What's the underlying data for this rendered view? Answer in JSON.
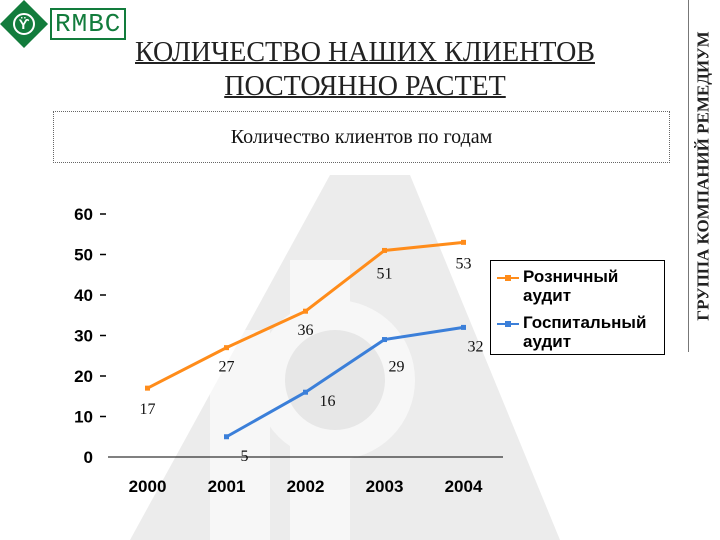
{
  "logo": {
    "text": "RMBC",
    "mark": "ϔ"
  },
  "header": {
    "title_line1": "КОЛИЧЕСТВО НАШИХ КЛИЕНТОВ",
    "title_line2": "ПОСТОЯННО РАСТЕТ",
    "subtitle": "Количество клиентов по годам",
    "side_label": "ГРУППА КОМПАНИЙ РЕМЕДИУМ"
  },
  "colors": {
    "brand": "#127c3c",
    "retail": "#ff8c1a",
    "hospital": "#3b7fd9"
  },
  "chart_data": {
    "type": "line",
    "categories": [
      "2000",
      "2001",
      "2002",
      "2003",
      "2004"
    ],
    "yticks": [
      "0",
      "10",
      "20",
      "30",
      "40",
      "50",
      "60"
    ],
    "ylim": [
      0,
      60
    ],
    "series": [
      {
        "name": "Розничный аудит",
        "values": [
          17,
          27,
          36,
          51,
          53
        ],
        "color": "#ff8c1a"
      },
      {
        "name": "Госпитальный аудит",
        "values": [
          null,
          5,
          16,
          29,
          32
        ],
        "color": "#3b7fd9"
      }
    ],
    "legend_position": "right",
    "grid": false
  }
}
